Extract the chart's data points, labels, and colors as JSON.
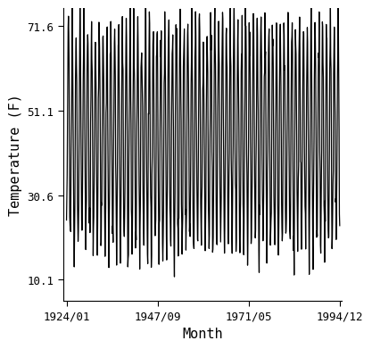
{
  "title": "",
  "xlabel": "Month",
  "ylabel": "Temperature (F)",
  "start_year": 1924,
  "start_month": 1,
  "end_year": 1994,
  "end_month": 12,
  "yticks": [
    10.1,
    30.6,
    51.1,
    71.6
  ],
  "xtick_labels": [
    "1924/01",
    "1947/09",
    "1971/05",
    "1994/12"
  ],
  "xtick_positions_months": [
    0,
    284,
    568,
    851
  ],
  "ylim": [
    5.0,
    76.0
  ],
  "annual_mean": 45.0,
  "seasonal_amplitude": 26.5,
  "line_color": "#000000",
  "line_width": 0.9,
  "background_color": "#ffffff",
  "font_family": "monospace",
  "tick_fontsize": 9,
  "label_fontsize": 11
}
